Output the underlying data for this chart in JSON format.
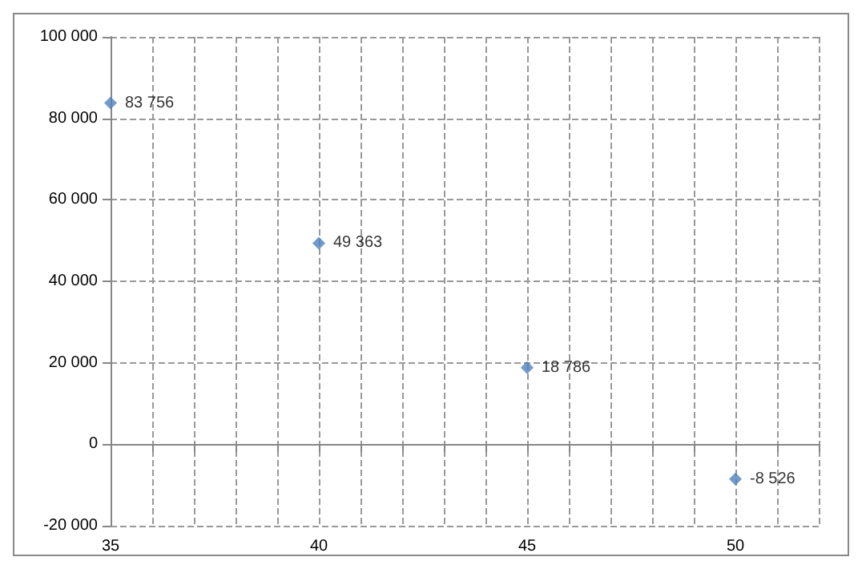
{
  "chart_data": {
    "type": "scatter",
    "x": [
      35,
      40,
      45,
      50
    ],
    "values": [
      83756,
      49363,
      18786,
      -8526
    ],
    "value_labels": [
      "83 756",
      "49 363",
      "18 786",
      "-8 526"
    ],
    "color": "#4f81bd",
    "marker": "diamond",
    "grid": true,
    "xlim": [
      35,
      52
    ],
    "xticks": [
      35,
      {
        "value": 36,
        "label": null
      },
      {
        "value": 37,
        "label": null
      },
      {
        "value": 38,
        "label": null
      },
      {
        "value": 39,
        "label": null
      },
      40,
      {
        "value": 41,
        "label": null
      },
      {
        "value": 42,
        "label": null
      },
      {
        "value": 43,
        "label": null
      },
      {
        "value": 44,
        "label": null
      },
      45,
      {
        "value": 46,
        "label": null
      },
      {
        "value": 47,
        "label": null
      },
      {
        "value": 48,
        "label": null
      },
      {
        "value": 49,
        "label": null
      },
      50,
      {
        "value": 51,
        "label": null
      },
      {
        "value": 52,
        "label": null
      }
    ],
    "ylim": [
      -20000,
      100000
    ],
    "yticks": [
      {
        "value": -20000,
        "label": "-20 000"
      },
      {
        "value": 0,
        "label": "0"
      },
      {
        "value": 20000,
        "label": "20 000"
      },
      {
        "value": 40000,
        "label": "40 000"
      },
      {
        "value": 60000,
        "label": "60 000"
      },
      {
        "value": 80000,
        "label": "80 000"
      },
      {
        "value": 100000,
        "label": "100 000"
      }
    ]
  }
}
